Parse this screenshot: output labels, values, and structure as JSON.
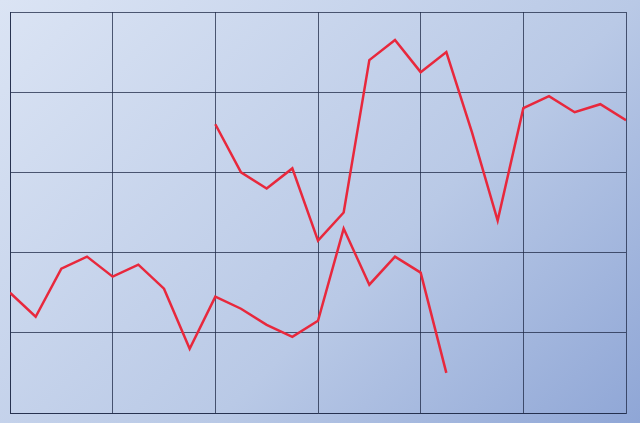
{
  "chart_data": {
    "type": "line",
    "x": [
      0,
      1,
      2,
      3,
      4,
      5,
      6,
      7,
      8,
      9,
      10,
      11,
      12,
      13,
      14,
      15,
      16,
      17,
      18,
      19,
      20,
      21,
      22,
      23,
      24
    ],
    "series": [
      {
        "color": "#e8283c",
        "values": [
          null,
          null,
          null,
          null,
          null,
          null,
          null,
          null,
          7.2,
          6.0,
          5.6,
          6.1,
          4.3,
          5.0,
          8.8,
          9.3,
          8.5,
          9.0,
          7.0,
          4.8,
          7.6,
          7.9,
          7.5,
          7.7,
          7.3
        ]
      },
      {
        "color": "#e8283c",
        "values": [
          3.0,
          2.4,
          3.6,
          3.9,
          3.4,
          3.7,
          3.1,
          1.6,
          2.9,
          2.6,
          2.2,
          1.9,
          2.3,
          4.6,
          3.2,
          3.9,
          3.5,
          1.0,
          null,
          null,
          null,
          null,
          null,
          null,
          null
        ]
      }
    ],
    "xlim": [
      0,
      24
    ],
    "xticks": [
      0,
      4,
      8,
      12,
      16,
      20,
      24
    ],
    "ylim": [
      0,
      10
    ],
    "yticks": [
      0,
      2,
      4,
      6,
      8,
      10
    ],
    "grid": true,
    "tick_labels": false
  }
}
